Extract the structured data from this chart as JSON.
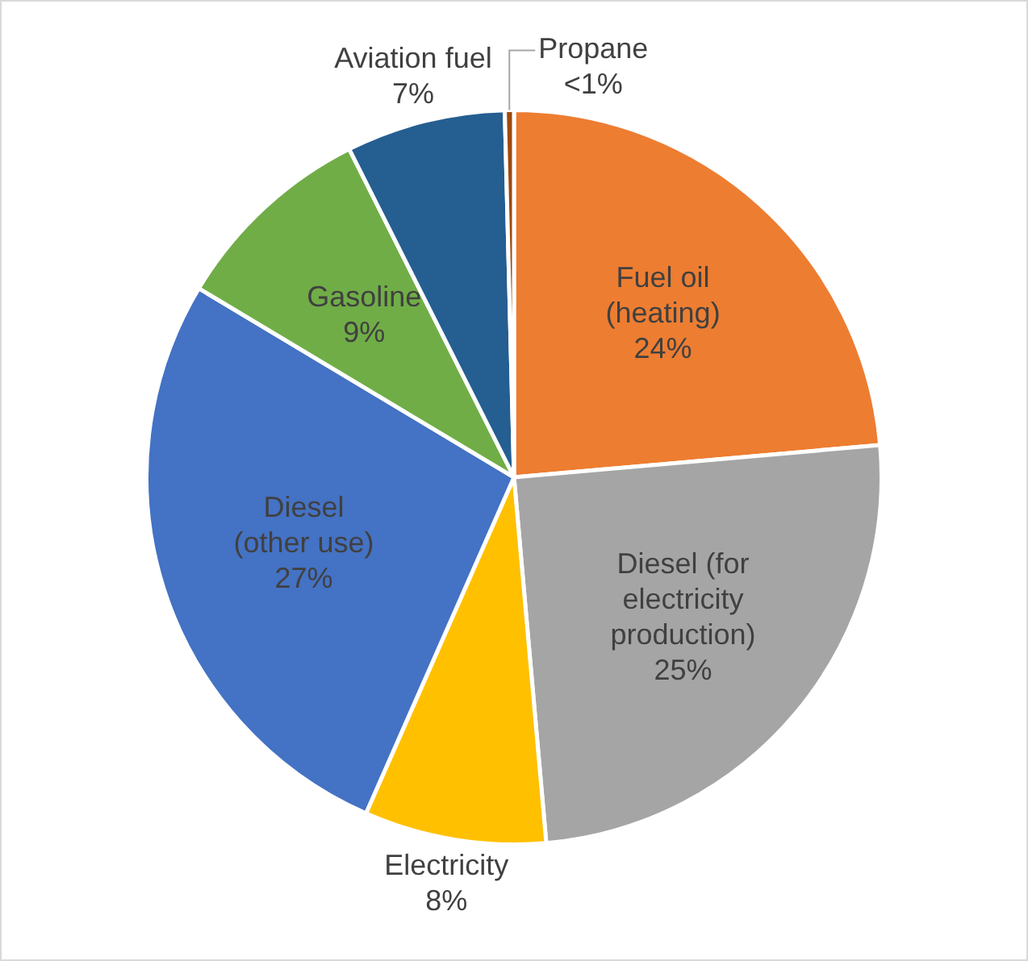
{
  "chart_data": {
    "type": "pie",
    "categories": [
      "Fuel oil (heating)",
      "Diesel (for electricity production)",
      "Electricity",
      "Diesel (other use)",
      "Gasoline",
      "Aviation fuel",
      "Propane"
    ],
    "values": [
      23.6,
      25,
      8,
      27,
      9,
      7,
      0.4
    ],
    "value_labels": [
      "24%",
      "25%",
      "8%",
      "27%",
      "9%",
      "7%",
      "<1%"
    ],
    "colors": [
      "#ed7d31",
      "#a5a5a5",
      "#ffc000",
      "#4472c4",
      "#70ad47",
      "#255e91",
      "#9e480e"
    ],
    "legend": false
  }
}
